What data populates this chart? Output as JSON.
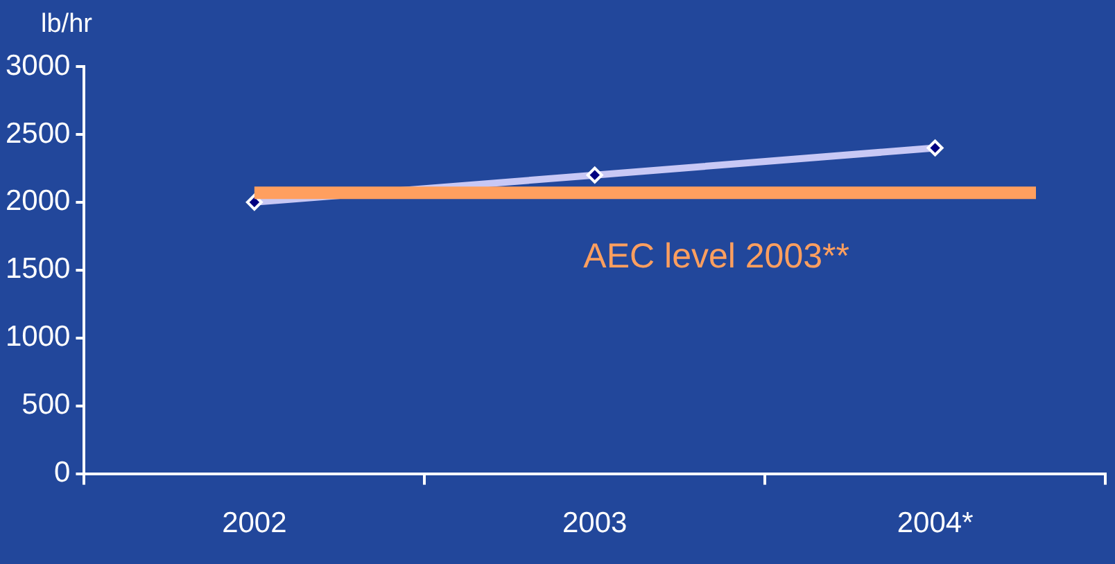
{
  "chart_data": {
    "type": "line",
    "ylabel": "lb/hr",
    "categories": [
      "2002",
      "2003",
      "2004*"
    ],
    "series": [
      {
        "color": "#c8c8f5",
        "values": [
          2000,
          2200,
          2400
        ]
      }
    ],
    "ylim": [
      0,
      3000
    ],
    "yticks": [
      0,
      500,
      1000,
      1500,
      2000,
      2500,
      3000
    ],
    "grid": false,
    "legend": false,
    "marker": "diamond",
    "line_style": "solid",
    "ref_lines": [
      {
        "axis": "y",
        "value": 2070,
        "label": "AEC level 2003**",
        "color": "#ff9f5f"
      }
    ]
  }
}
